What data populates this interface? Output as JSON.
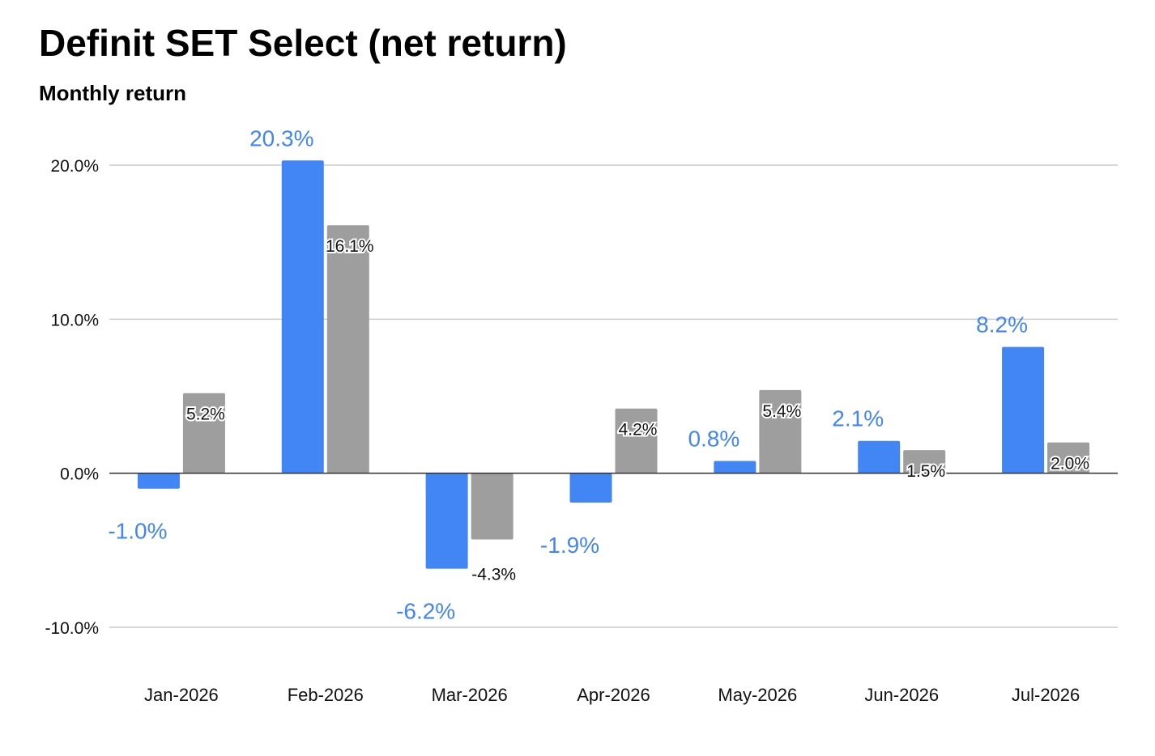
{
  "chart_data": {
    "type": "bar",
    "title": "Definit SET Select (net return)",
    "subtitle": "Monthly return",
    "categories": [
      "Jan-2026",
      "Feb-2026",
      "Mar-2026",
      "Apr-2026",
      "May-2026",
      "Jun-2026",
      "Jul-2026"
    ],
    "series": [
      {
        "values": [
          -1.0,
          20.3,
          -6.2,
          -1.9,
          0.8,
          2.1,
          8.2
        ],
        "labels": [
          "-1.0%",
          "20.3%",
          "-6.2%",
          "-1.9%",
          "0.8%",
          "2.1%",
          "8.2%"
        ],
        "color": "#4285f4"
      },
      {
        "values": [
          5.2,
          16.1,
          -4.3,
          4.2,
          5.4,
          1.5,
          2.0
        ],
        "labels": [
          "5.2%",
          "16.1%",
          "-4.3%",
          "4.2%",
          "5.4%",
          "1.5%",
          "2.0%"
        ],
        "color": "#9e9e9e"
      }
    ],
    "yticks": [
      20,
      10,
      0,
      -10
    ],
    "ytick_labels": [
      "20.0%",
      "10.0%",
      "0.0%",
      "-10.0%"
    ],
    "ylim": [
      -10,
      20
    ],
    "xlabel": "",
    "ylabel": "",
    "grid": true,
    "legend": "none"
  }
}
